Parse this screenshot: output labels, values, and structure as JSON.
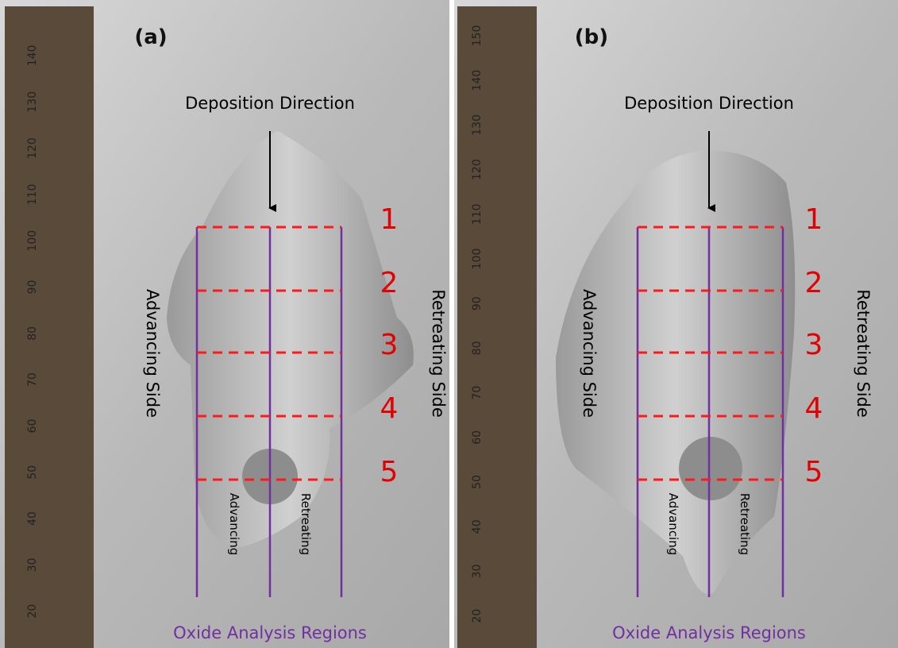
{
  "panels": [
    {
      "label": "(a)",
      "direction": "Deposition Direction",
      "left_side": "Advancing Side",
      "right_side": "Retreating Side",
      "regions": [
        "1",
        "2",
        "3",
        "4",
        "5"
      ],
      "sub_left": "Advancing",
      "sub_right": "Retreating",
      "caption": "Oxide Analysis Regions",
      "ruler_labels": [
        "140",
        "130",
        "120",
        "110",
        "100",
        "90",
        "80",
        "70",
        "60",
        "50",
        "40",
        "30",
        "20"
      ]
    },
    {
      "label": "(b)",
      "direction": "Deposition Direction",
      "left_side": "Advancing Side",
      "right_side": "Retreating Side",
      "regions": [
        "1",
        "2",
        "3",
        "4",
        "5"
      ],
      "sub_left": "Advancing",
      "sub_right": "Retreating",
      "caption": "Oxide Analysis Regions",
      "ruler_labels": [
        "150",
        "140",
        "130",
        "120",
        "110",
        "100",
        "90",
        "80",
        "70",
        "60",
        "50",
        "40",
        "30",
        "20"
      ]
    }
  ]
}
